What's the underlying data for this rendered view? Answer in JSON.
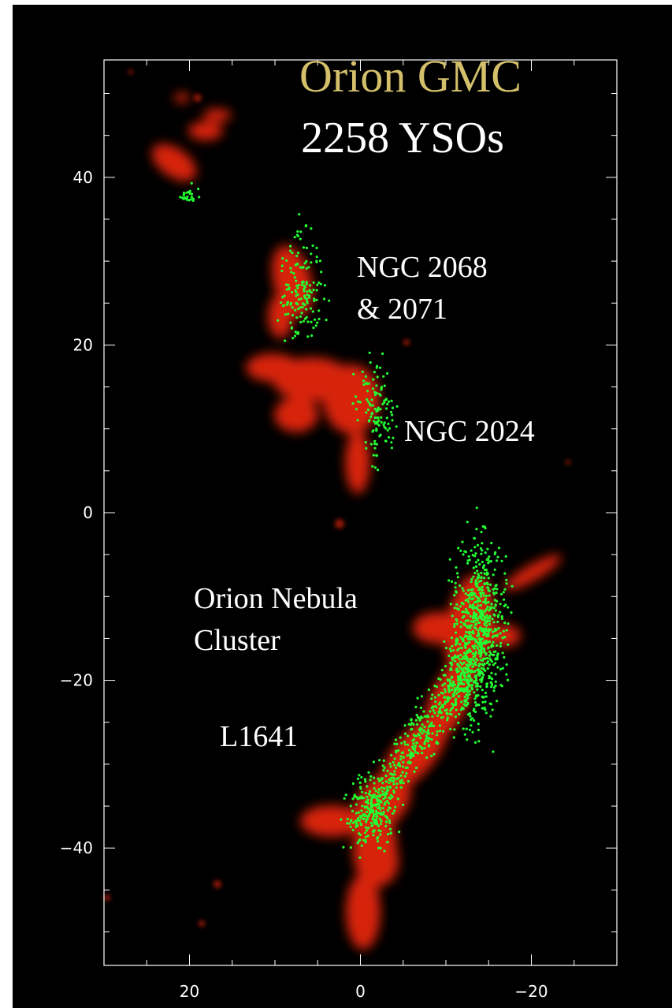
{
  "title": "Orion GMC",
  "subtitle": "2258 YSOs",
  "colors": {
    "title": "#d4c06a",
    "subtitle": "#ffffff",
    "cloud": "#ff2a0a",
    "ysos": "#22ff33",
    "background": "#000000",
    "axes": "#ffffff"
  },
  "labels": {
    "ngc2068_line1": "NGC 2068",
    "ngc2068_line2": "& 2071",
    "ngc2024": "NGC 2024",
    "onc_line1": "Orion Nebula",
    "onc_line2": "Cluster",
    "l1641": "L1641"
  },
  "axes": {
    "x_range": [
      30,
      -30
    ],
    "y_range": [
      -54,
      54
    ],
    "x_ticks": [
      {
        "value": 20,
        "label": "20"
      },
      {
        "value": 0,
        "label": "0"
      },
      {
        "value": -20,
        "label": "−20"
      }
    ],
    "y_ticks": [
      {
        "value": 40,
        "label": "40"
      },
      {
        "value": 20,
        "label": "20"
      },
      {
        "value": 0,
        "label": "0"
      },
      {
        "value": -20,
        "label": "−20"
      },
      {
        "value": -40,
        "label": "−40"
      }
    ]
  }
}
